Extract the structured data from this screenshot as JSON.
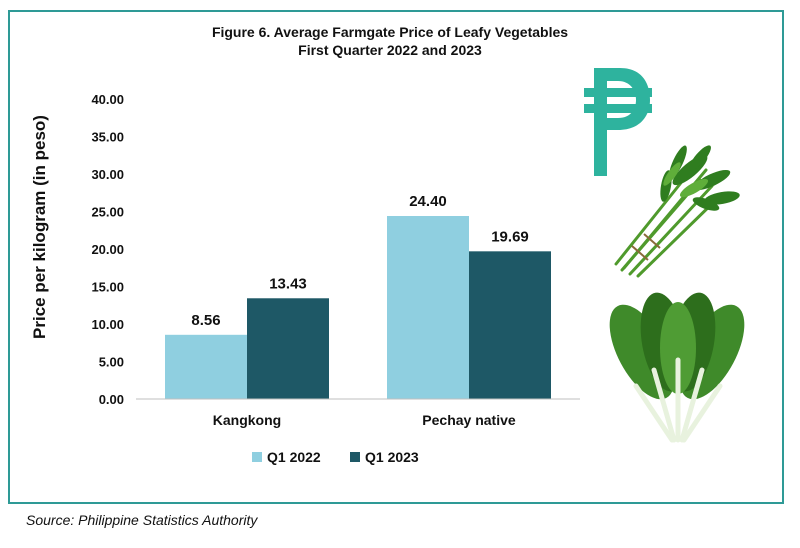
{
  "chart_data": {
    "type": "bar",
    "title": "Figure 6. Average Farmgate Price of Leafy Vegetables",
    "subtitle": "First Quarter 2022 and 2023",
    "xlabel": "",
    "ylabel": "Price per kilogram (in peso)",
    "categories": [
      "Kangkong",
      "Pechay native"
    ],
    "series": [
      {
        "name": "Q1 2022",
        "values": [
          8.56,
          24.4
        ],
        "labels": [
          "8.56",
          "24.40"
        ],
        "color": "#8fcfe0"
      },
      {
        "name": "Q1 2023",
        "values": [
          13.43,
          19.69
        ],
        "labels": [
          "13.43",
          "19.69"
        ],
        "color": "#1e5866"
      }
    ],
    "ylim": [
      0,
      40
    ],
    "yticks": [
      "0.00",
      "5.00",
      "10.00",
      "15.00",
      "20.00",
      "25.00",
      "30.00",
      "35.00",
      "40.00"
    ],
    "grid": false,
    "legend": "bottom-center"
  },
  "decor": {
    "peso_icon": "peso-sign-icon",
    "peso_color": "#2eb39e",
    "kangkong_icon": "kangkong-bundle-image",
    "pechay_icon": "pechay-leaves-image"
  },
  "source": "Source: Philippine Statistics Authority"
}
